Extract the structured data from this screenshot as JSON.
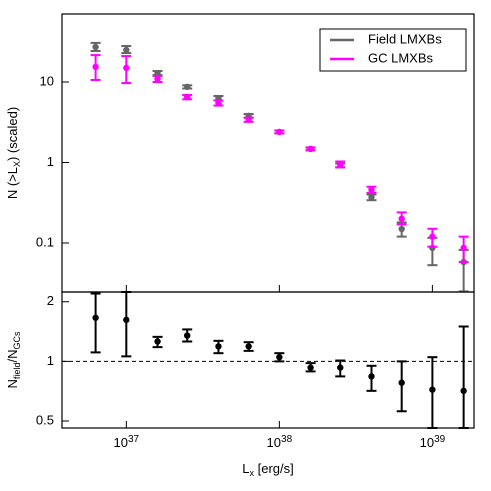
{
  "chart_data": [
    {
      "type": "scatter",
      "log_x": true,
      "log_y": true,
      "ylabel": [
        "N (>L",
        "X",
        ") (scaled)"
      ],
      "x": [
        6.3e+36,
        1e+37,
        1.6e+37,
        2.5e+37,
        4e+37,
        6.3e+37,
        1e+38,
        1.6e+38,
        2.5e+38,
        4e+38,
        6.3e+38,
        1e+39,
        1.6e+39
      ],
      "xlim": [
        3.8e+36,
        1.87e+39
      ],
      "xticks": [
        1e+37,
        1e+38,
        1e+39
      ],
      "ylim": [
        0.0246,
        70
      ],
      "yticks": [
        0.1,
        1,
        10
      ],
      "legend": "top-right",
      "series": [
        {
          "name": "Field LMXBs",
          "color": "#666666",
          "values": [
            27.2,
            25,
            12.9,
            8.7,
            6.3,
            3.8,
            2.4,
            1.47,
            0.92,
            0.37,
            0.149,
            0.087,
            0.058
          ],
          "lower": [
            24.3,
            22.9,
            12.2,
            8.3,
            5.9,
            3.6,
            2.3,
            1.42,
            0.87,
            0.34,
            0.12,
            0.053,
            0.025
          ],
          "upper": [
            30.6,
            28,
            13.7,
            9.1,
            6.7,
            4.0,
            2.5,
            1.53,
            0.97,
            0.4,
            0.18,
            0.116,
            0.082
          ]
        },
        {
          "name": "GC LMXBs",
          "color": "#ff00ff",
          "values": [
            15.4,
            15,
            10.9,
            6.5,
            5.5,
            3.4,
            2.4,
            1.48,
            0.95,
            0.46,
            0.2,
            0.12,
            0.087
          ],
          "lower": [
            10.6,
            9.7,
            10,
            6.1,
            5.1,
            3.2,
            2.3,
            1.42,
            0.87,
            0.42,
            0.17,
            0.09,
            0.058
          ],
          "upper": [
            21.6,
            21,
            11.9,
            6.9,
            5.9,
            3.6,
            2.5,
            1.54,
            1.03,
            0.5,
            0.24,
            0.15,
            0.12
          ]
        }
      ]
    },
    {
      "type": "scatter",
      "log_x": true,
      "log_y": true,
      "ylabel": [
        "N",
        "field",
        "/N",
        "GCs"
      ],
      "xlabel": [
        "L",
        "x",
        " [erg/s]"
      ],
      "x": [
        6.3e+36,
        1e+37,
        1.6e+37,
        2.5e+37,
        4e+37,
        6.3e+37,
        1e+38,
        1.6e+38,
        2.5e+38,
        4e+38,
        6.3e+38,
        1e+39,
        1.6e+39
      ],
      "xlim": [
        3.8e+36,
        1.87e+39
      ],
      "xticks": [
        {
          "value": 1e+37,
          "label": "10^37"
        },
        {
          "value": 1e+38,
          "label": "10^38"
        },
        {
          "value": 1e+39,
          "label": "10^39"
        }
      ],
      "ylim": [
        0.461,
        2.24
      ],
      "yticks": [
        0.5,
        1,
        2
      ],
      "reference_line": 1,
      "series": [
        {
          "color": "#000000",
          "values": [
            1.66,
            1.62,
            1.26,
            1.35,
            1.19,
            1.19,
            1.05,
            0.93,
            0.93,
            0.84,
            0.78,
            0.72,
            0.71
          ],
          "lower": [
            1.11,
            1.06,
            1.18,
            1.26,
            1.1,
            1.13,
            1.0,
            0.89,
            0.84,
            0.71,
            0.56,
            0.46,
            0.46
          ],
          "upper": [
            2.2,
            2.24,
            1.33,
            1.45,
            1.27,
            1.25,
            1.1,
            0.98,
            1.01,
            0.95,
            1.0,
            1.05,
            1.5
          ]
        }
      ]
    }
  ]
}
